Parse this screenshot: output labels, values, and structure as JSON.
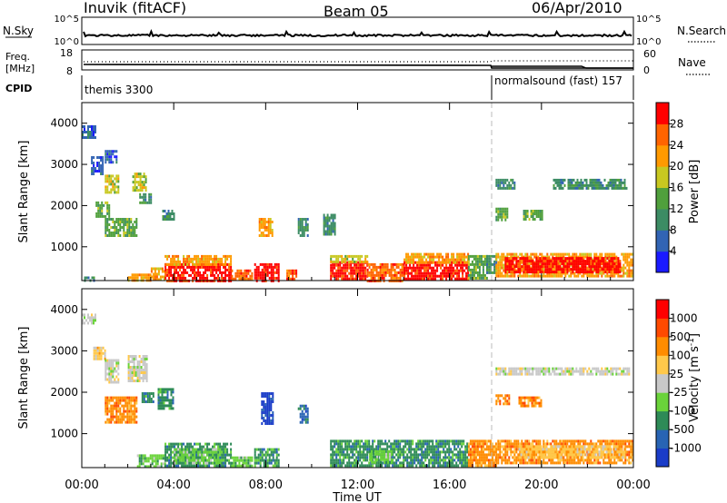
{
  "header": {
    "station": "Inuvik (fitACF)",
    "beam": "Beam 05",
    "date": "06/Apr/2010"
  },
  "top_strips": {
    "nsky_label": "N.Sky",
    "nsky_ticks": [
      "10^5",
      "10^0"
    ],
    "nsearch_label": "N.Search",
    "nsearch_ticks": [
      "10^5",
      "10^0"
    ],
    "freq_label_line1": "Freq.",
    "freq_label_line2": "[MHz]",
    "freq_ticks": [
      "18",
      "8"
    ],
    "nave_label": "Nave",
    "nave_ticks": [
      "60",
      "0"
    ],
    "cpid_label": "CPID",
    "cpid_segments": [
      {
        "name": "themis 3300",
        "start_hour": 0,
        "end_hour": 18
      },
      {
        "name": "normalsound (fast) 157",
        "start_hour": 18,
        "end_hour": 24
      }
    ]
  },
  "chart_data": [
    {
      "type": "heatmap",
      "title": "",
      "xlabel": "Time UT",
      "ylabel": "Slant Range [km]",
      "x_tick_labels": [
        "00:00",
        "04:00",
        "08:00",
        "12:00",
        "16:00",
        "20:00",
        "00:00"
      ],
      "xlim": [
        0,
        24
      ],
      "ylim": [
        180,
        4500
      ],
      "y_ticks": [
        1000,
        2000,
        3000,
        4000
      ],
      "colorbar": {
        "label": "Power [dB]",
        "ticks": [
          "28",
          "24",
          "20",
          "16",
          "12",
          "8",
          "4"
        ],
        "colors": [
          "#1a1aff",
          "#3264b4",
          "#3c8c64",
          "#50a03c",
          "#c8c820",
          "#ff9a00",
          "#ff6400",
          "#ff0000"
        ]
      },
      "regions": [
        {
          "t0": 0.0,
          "t1": 0.6,
          "r0": 3650,
          "r1": 3950,
          "level": 1
        },
        {
          "t0": 0.4,
          "t1": 0.9,
          "r0": 2800,
          "r1": 3200,
          "level": 1
        },
        {
          "t0": 1.0,
          "t1": 1.5,
          "r0": 3050,
          "r1": 3350,
          "level": 1
        },
        {
          "t0": 1.0,
          "t1": 1.6,
          "r0": 2350,
          "r1": 2750,
          "level": 4
        },
        {
          "t0": 2.2,
          "t1": 2.8,
          "r0": 2400,
          "r1": 2800,
          "level": 4
        },
        {
          "t0": 0.6,
          "t1": 1.2,
          "r0": 1750,
          "r1": 2100,
          "level": 3
        },
        {
          "t0": 1.0,
          "t1": 2.4,
          "r0": 1300,
          "r1": 1700,
          "level": 3
        },
        {
          "t0": 2.5,
          "t1": 3.0,
          "r0": 2050,
          "r1": 2300,
          "level": 2
        },
        {
          "t0": 3.5,
          "t1": 4.0,
          "r0": 1650,
          "r1": 1900,
          "level": 2
        },
        {
          "t0": 0.1,
          "t1": 0.5,
          "r0": 200,
          "r1": 280,
          "level": 2
        },
        {
          "t0": 2.0,
          "t1": 3.0,
          "r0": 200,
          "r1": 350,
          "level": 5
        },
        {
          "t0": 3.0,
          "t1": 3.6,
          "r0": 200,
          "r1": 500,
          "level": 5
        },
        {
          "t0": 3.6,
          "t1": 6.5,
          "r0": 200,
          "r1": 600,
          "level": 7
        },
        {
          "t0": 3.6,
          "t1": 6.5,
          "r0": 600,
          "r1": 800,
          "level": 5
        },
        {
          "t0": 6.5,
          "t1": 7.4,
          "r0": 200,
          "r1": 450,
          "level": 6
        },
        {
          "t0": 7.5,
          "t1": 8.6,
          "r0": 200,
          "r1": 600,
          "level": 7
        },
        {
          "t0": 7.7,
          "t1": 8.3,
          "r0": 1300,
          "r1": 1700,
          "level": 5
        },
        {
          "t0": 8.9,
          "t1": 9.4,
          "r0": 200,
          "r1": 450,
          "level": 6
        },
        {
          "t0": 9.4,
          "t1": 9.8,
          "r0": 1300,
          "r1": 1700,
          "level": 2
        },
        {
          "t0": 10.5,
          "t1": 11.0,
          "r0": 1300,
          "r1": 1800,
          "level": 2
        },
        {
          "t0": 10.8,
          "t1": 12.4,
          "r0": 200,
          "r1": 650,
          "level": 7
        },
        {
          "t0": 10.8,
          "t1": 12.4,
          "r0": 650,
          "r1": 800,
          "level": 4
        },
        {
          "t0": 12.4,
          "t1": 14.0,
          "r0": 200,
          "r1": 600,
          "level": 6
        },
        {
          "t0": 14.0,
          "t1": 16.8,
          "r0": 200,
          "r1": 650,
          "level": 7
        },
        {
          "t0": 14.0,
          "t1": 16.8,
          "r0": 650,
          "r1": 850,
          "level": 5
        },
        {
          "t0": 16.8,
          "t1": 17.6,
          "r0": 250,
          "r1": 800,
          "level": 3
        },
        {
          "t0": 17.6,
          "t1": 18.0,
          "r0": 350,
          "r1": 800,
          "level": 2
        },
        {
          "t0": 18.0,
          "t1": 24.0,
          "r0": 300,
          "r1": 850,
          "level": 5
        },
        {
          "t0": 18.4,
          "t1": 23.4,
          "r0": 400,
          "r1": 750,
          "level": 7
        },
        {
          "t0": 18.0,
          "t1": 18.5,
          "r0": 1650,
          "r1": 1950,
          "level": 3
        },
        {
          "t0": 19.2,
          "t1": 20.0,
          "r0": 1650,
          "r1": 1900,
          "level": 3
        },
        {
          "t0": 18.0,
          "t1": 18.8,
          "r0": 2450,
          "r1": 2650,
          "level": 2
        },
        {
          "t0": 20.5,
          "t1": 23.7,
          "r0": 2400,
          "r1": 2650,
          "level": 2
        }
      ]
    },
    {
      "type": "heatmap",
      "title": "",
      "xlabel": "Time UT",
      "ylabel": "Slant Range [km]",
      "x_tick_labels": [
        "00:00",
        "04:00",
        "08:00",
        "12:00",
        "16:00",
        "20:00",
        "00:00"
      ],
      "xlim": [
        0,
        24
      ],
      "ylim": [
        180,
        4500
      ],
      "y_ticks": [
        1000,
        2000,
        3000,
        4000
      ],
      "colorbar": {
        "label": "Velocity [m s",
        "label_sup": "-1",
        "label_end": "]",
        "ticks": [
          "1000",
          "500",
          "100",
          "25",
          "-25",
          "-100",
          "-500",
          "-1000"
        ],
        "colors": [
          "#1a3cc8",
          "#2864b4",
          "#2e8b57",
          "#6ad33a",
          "#c8c8c8",
          "#ffc84a",
          "#ff8c00",
          "#ff4a00",
          "#ff0000"
        ]
      },
      "regions": [
        {
          "t0": 0.0,
          "t1": 0.6,
          "r0": 3700,
          "r1": 3900,
          "level": 4
        },
        {
          "t0": 0.5,
          "t1": 1.0,
          "r0": 2800,
          "r1": 3100,
          "level": 5
        },
        {
          "t0": 1.0,
          "t1": 1.6,
          "r0": 2250,
          "r1": 2800,
          "level": 4
        },
        {
          "t0": 2.0,
          "t1": 2.8,
          "r0": 2300,
          "r1": 2900,
          "level": 4
        },
        {
          "t0": 1.0,
          "t1": 2.4,
          "r0": 1300,
          "r1": 1900,
          "level": 6
        },
        {
          "t0": 2.6,
          "t1": 3.1,
          "r0": 1800,
          "r1": 2000,
          "level": 2
        },
        {
          "t0": 3.3,
          "t1": 4.0,
          "r0": 1600,
          "r1": 2100,
          "level": 2
        },
        {
          "t0": 7.8,
          "t1": 8.3,
          "r0": 1250,
          "r1": 2000,
          "level": 0
        },
        {
          "t0": 9.4,
          "t1": 9.8,
          "r0": 1300,
          "r1": 1700,
          "level": 1
        },
        {
          "t0": 2.4,
          "t1": 3.6,
          "r0": 200,
          "r1": 500,
          "level": 3
        },
        {
          "t0": 3.6,
          "t1": 6.5,
          "r0": 200,
          "r1": 780,
          "level": 2
        },
        {
          "t0": 4.0,
          "t1": 6.0,
          "r0": 300,
          "r1": 650,
          "level": 3
        },
        {
          "t0": 6.5,
          "t1": 7.4,
          "r0": 200,
          "r1": 450,
          "level": 3
        },
        {
          "t0": 7.5,
          "t1": 8.6,
          "r0": 200,
          "r1": 650,
          "level": 2
        },
        {
          "t0": 10.8,
          "t1": 16.8,
          "r0": 200,
          "r1": 850,
          "level": 2
        },
        {
          "t0": 12.5,
          "t1": 13.5,
          "r0": 300,
          "r1": 600,
          "level": 3
        },
        {
          "t0": 16.8,
          "t1": 18.0,
          "r0": 250,
          "r1": 850,
          "level": 6
        },
        {
          "t0": 18.0,
          "t1": 24.0,
          "r0": 300,
          "r1": 850,
          "level": 6
        },
        {
          "t0": 19.0,
          "t1": 23.6,
          "r0": 400,
          "r1": 720,
          "level": 5
        },
        {
          "t0": 18.0,
          "t1": 18.6,
          "r0": 1700,
          "r1": 1950,
          "level": 6
        },
        {
          "t0": 19.0,
          "t1": 20.0,
          "r0": 1650,
          "r1": 1900,
          "level": 6
        },
        {
          "t0": 18.0,
          "t1": 23.8,
          "r0": 2450,
          "r1": 2600,
          "level": 4
        }
      ]
    }
  ]
}
